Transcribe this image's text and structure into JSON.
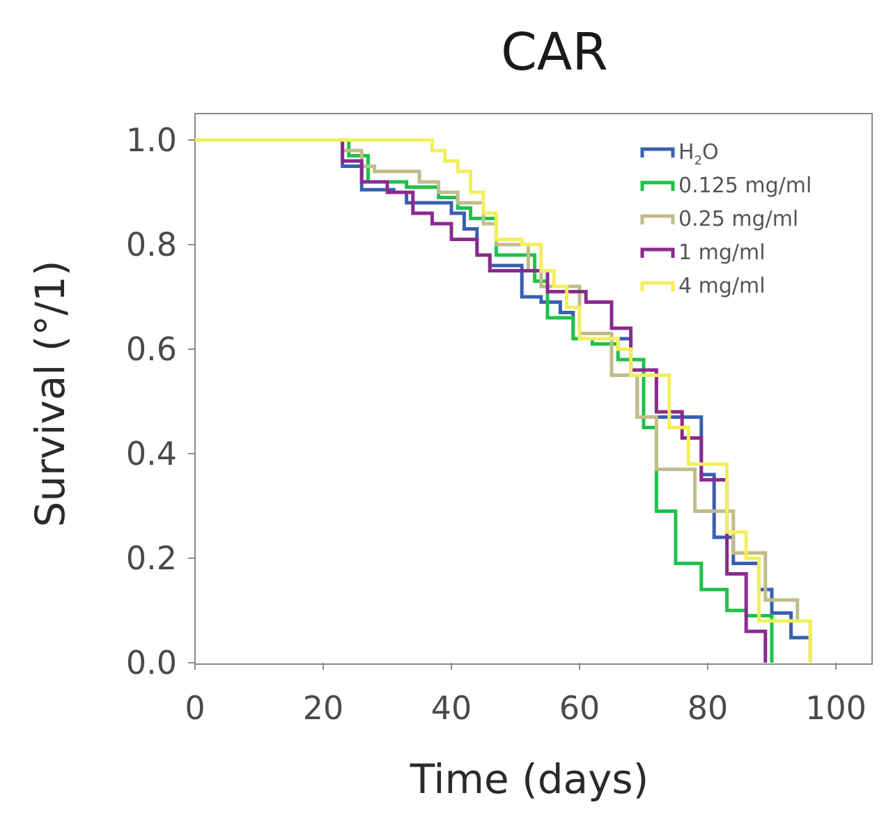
{
  "chart_data": {
    "type": "line",
    "step": true,
    "title": "CAR",
    "xlabel": "Time (days)",
    "ylabel": "Survival (°/1)",
    "xlim": [
      0,
      105
    ],
    "ylim": [
      0,
      1.05
    ],
    "xticks": [
      0,
      20,
      40,
      60,
      80,
      100
    ],
    "xtick_labels": [
      "0",
      "20",
      "40",
      "60",
      "80",
      "100"
    ],
    "yticks": [
      0,
      0.2,
      0.4,
      0.6,
      0.8,
      1.0
    ],
    "ytick_labels": [
      "0.0",
      "0.2",
      "0.4",
      "0.6",
      "0.8",
      "1.0"
    ],
    "legend_position": "top-right",
    "series": [
      {
        "name": "H2O",
        "legend_main": "H",
        "legend_sub": "2",
        "legend_tail": "O",
        "color": "#3a5fb0",
        "x": [
          0,
          23,
          26,
          31,
          33,
          40,
          42,
          44,
          46,
          51,
          54,
          57,
          59,
          65,
          68,
          69,
          72,
          75,
          79,
          81,
          84,
          88,
          90,
          93,
          96
        ],
        "y": [
          1.0,
          0.95,
          0.905,
          0.9,
          0.88,
          0.86,
          0.83,
          0.78,
          0.76,
          0.7,
          0.69,
          0.67,
          0.62,
          0.62,
          0.55,
          0.47,
          0.47,
          0.47,
          0.36,
          0.24,
          0.19,
          0.14,
          0.095,
          0.048,
          0.0
        ]
      },
      {
        "name": "0.125 mg/ml",
        "color": "#1ec24a",
        "x": [
          0,
          24,
          27,
          31,
          33,
          38,
          41,
          43,
          47,
          53,
          55,
          59,
          62,
          66,
          70,
          72,
          75,
          79,
          83,
          86,
          90
        ],
        "y": [
          1.0,
          0.97,
          0.92,
          0.92,
          0.91,
          0.89,
          0.87,
          0.85,
          0.78,
          0.73,
          0.66,
          0.62,
          0.61,
          0.58,
          0.45,
          0.29,
          0.19,
          0.14,
          0.1,
          0.09,
          0.0
        ]
      },
      {
        "name": "0.25 mg/ml",
        "color": "#c0bd8a",
        "x": [
          0,
          23,
          26,
          28,
          35,
          38,
          41,
          45,
          47,
          52,
          54,
          60,
          65,
          67,
          69,
          72,
          74,
          78,
          81,
          84,
          89,
          92,
          94,
          96
        ],
        "y": [
          1.0,
          0.98,
          0.95,
          0.94,
          0.92,
          0.9,
          0.88,
          0.84,
          0.8,
          0.75,
          0.72,
          0.63,
          0.55,
          0.55,
          0.47,
          0.37,
          0.37,
          0.29,
          0.29,
          0.21,
          0.12,
          0.12,
          0.08,
          0.0
        ]
      },
      {
        "name": "1 mg/ml",
        "color": "#8a2a8e",
        "x": [
          0,
          23,
          26,
          30,
          34,
          37,
          40,
          44,
          46,
          51,
          55,
          61,
          65,
          68,
          72,
          76,
          79,
          83,
          86,
          89
        ],
        "y": [
          1.0,
          0.96,
          0.92,
          0.9,
          0.86,
          0.84,
          0.81,
          0.78,
          0.75,
          0.75,
          0.71,
          0.69,
          0.64,
          0.56,
          0.48,
          0.43,
          0.35,
          0.17,
          0.06,
          0.0
        ]
      },
      {
        "name": "4 mg/ml",
        "color": "#f4ee5e",
        "x": [
          0,
          37,
          39,
          41,
          43,
          45,
          47,
          51,
          54,
          56,
          58,
          60,
          64,
          66,
          68,
          70,
          74,
          77,
          80,
          83,
          86,
          88,
          96
        ],
        "y": [
          1.0,
          0.98,
          0.96,
          0.94,
          0.9,
          0.86,
          0.81,
          0.8,
          0.75,
          0.72,
          0.68,
          0.62,
          0.62,
          0.6,
          0.55,
          0.55,
          0.45,
          0.38,
          0.38,
          0.25,
          0.2,
          0.08,
          0.0
        ]
      }
    ]
  }
}
